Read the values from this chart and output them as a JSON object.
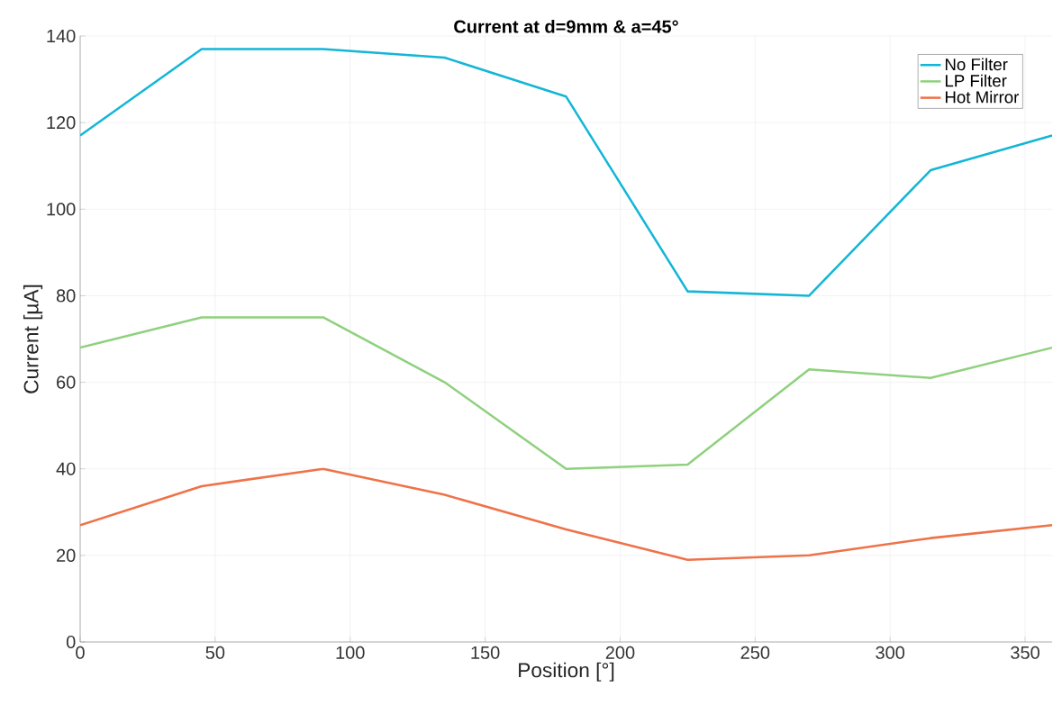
{
  "chart_data": {
    "type": "line",
    "title": "Current at d=9mm & a=45°",
    "xlabel": "Position [°]",
    "ylabel": "Current [µA]",
    "x": [
      0,
      45,
      90,
      135,
      180,
      225,
      270,
      315,
      360
    ],
    "series": [
      {
        "name": "No Filter",
        "color": "#13b6d6",
        "values": [
          117,
          137,
          137,
          135,
          126,
          81,
          80,
          109,
          117
        ]
      },
      {
        "name": "LP Filter",
        "color": "#8fd17e",
        "values": [
          68,
          75,
          75,
          60,
          40,
          41,
          63,
          61,
          68
        ]
      },
      {
        "name": "Hot Mirror",
        "color": "#ef7249",
        "values": [
          27,
          36,
          40,
          34,
          26,
          19,
          20,
          24,
          27
        ]
      }
    ],
    "xlim": [
      0,
      360
    ],
    "ylim": [
      0,
      140
    ],
    "xticks": [
      0,
      50,
      100,
      150,
      200,
      250,
      300,
      350
    ],
    "yticks": [
      0,
      20,
      40,
      60,
      80,
      100,
      120,
      140
    ],
    "grid": true,
    "legend": "top right",
    "marker": "none",
    "line_style": "solid"
  }
}
